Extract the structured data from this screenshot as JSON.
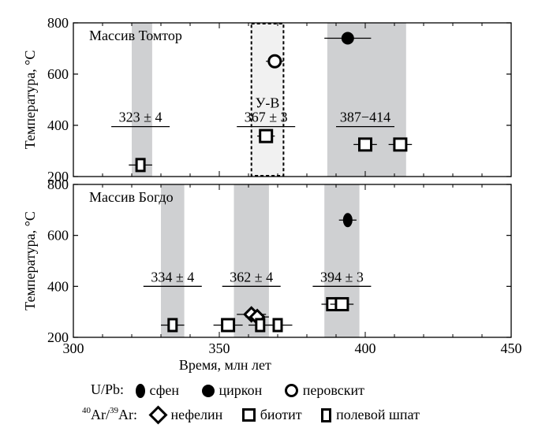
{
  "chart_data": [
    {
      "type": "scatter",
      "panel_label": "Массив Томтор",
      "ylabel": "Температура, °C",
      "xlim": [
        300,
        450
      ],
      "ylim": [
        200,
        800
      ],
      "yticks": [
        200,
        400,
        600,
        800
      ],
      "bands": [
        {
          "x0": 320,
          "x1": 327
        },
        {
          "x0": 387,
          "x1": 414
        }
      ],
      "dashed_band": {
        "x0": 361,
        "x1": 372,
        "label": "У-В"
      },
      "age_labels": [
        {
          "text": "323 ± 4",
          "x": 323,
          "y": 395
        },
        {
          "text": "367 ± 3",
          "x": 366,
          "y": 395
        },
        {
          "text": "387−414",
          "x": 400,
          "y": 395
        }
      ],
      "series": [
        {
          "name": "циркон",
          "marker": "zircon",
          "points": [
            {
              "x": 394,
              "y": 740,
              "xerr": 8
            }
          ]
        },
        {
          "name": "перовскит",
          "marker": "perovskite",
          "points": [
            {
              "x": 369,
              "y": 650,
              "xerr": 3
            }
          ]
        },
        {
          "name": "биотит",
          "marker": "biotite",
          "points": [
            {
              "x": 366,
              "y": 358,
              "xerr": 3
            },
            {
              "x": 400,
              "y": 325,
              "xerr": 4
            },
            {
              "x": 412,
              "y": 325,
              "xerr": 4
            }
          ]
        },
        {
          "name": "полевой шпат",
          "marker": "feldspar",
          "points": [
            {
              "x": 323,
              "y": 245,
              "xerr": 4
            }
          ]
        }
      ]
    },
    {
      "type": "scatter",
      "panel_label": "Массив Богдо",
      "ylabel": "Температура, °C",
      "xlabel": "Время, млн лет",
      "xlim": [
        300,
        450
      ],
      "xticks": [
        300,
        350,
        400,
        450
      ],
      "ylim": [
        200,
        800
      ],
      "yticks": [
        200,
        400,
        600,
        800
      ],
      "bands": [
        {
          "x0": 330,
          "x1": 338
        },
        {
          "x0": 355,
          "x1": 367
        },
        {
          "x0": 386,
          "x1": 398
        }
      ],
      "age_labels": [
        {
          "text": "334 ± 4",
          "x": 334,
          "y": 400
        },
        {
          "text": "362 ± 4",
          "x": 361,
          "y": 400
        },
        {
          "text": "394 ± 3",
          "x": 392,
          "y": 400
        }
      ],
      "series": [
        {
          "name": "сфен",
          "marker": "sphene",
          "points": [
            {
              "x": 394,
              "y": 660,
              "xerr": 3
            }
          ]
        },
        {
          "name": "нефелин",
          "marker": "nepheline",
          "points": [
            {
              "x": 361,
              "y": 290,
              "xerr": 5
            },
            {
              "x": 363,
              "y": 280,
              "xerr": 4
            }
          ]
        },
        {
          "name": "биотит",
          "marker": "biotite",
          "points": [
            {
              "x": 353,
              "y": 248,
              "xerr": 5
            },
            {
              "x": 389,
              "y": 330,
              "xerr": 4
            },
            {
              "x": 392,
              "y": 330,
              "xerr": 4
            }
          ]
        },
        {
          "name": "полевой шпат",
          "marker": "feldspar",
          "points": [
            {
              "x": 334,
              "y": 248,
              "xerr": 4
            },
            {
              "x": 364,
              "y": 248,
              "xerr": 4
            },
            {
              "x": 370,
              "y": 248,
              "xerr": 5
            }
          ]
        }
      ]
    }
  ],
  "legend": {
    "upb_label": "U/Pb:",
    "arar_prefix_a": "40",
    "arar_prefix_b": "Ar/",
    "arar_prefix_c": "39",
    "arar_prefix_d": "Ar:",
    "sphene": "сфен",
    "zircon": "циркон",
    "perovskite": "перовскит",
    "nepheline": "нефелин",
    "biotite": "биотит",
    "feldspar": "полевой шпат"
  }
}
